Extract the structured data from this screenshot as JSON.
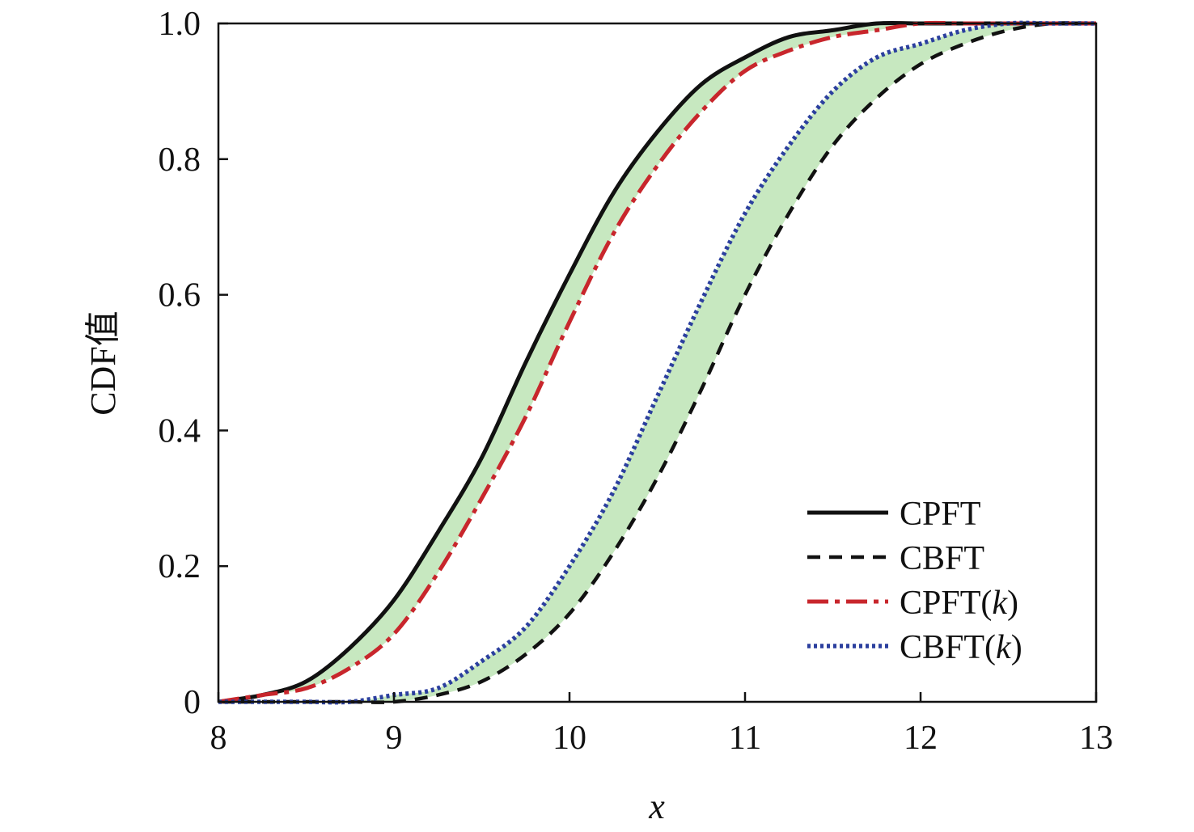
{
  "chart_data": {
    "type": "line",
    "xlabel": "x",
    "ylabel": "CDF值",
    "xlim": [
      8,
      13
    ],
    "ylim": [
      0,
      1
    ],
    "xticks": [
      8,
      9,
      10,
      11,
      12,
      13
    ],
    "xtick_labels": [
      "8",
      "9",
      "10",
      "11",
      "12",
      "13"
    ],
    "yticks": [
      0,
      0.2,
      0.4,
      0.6,
      0.8,
      1.0
    ],
    "ytick_labels": [
      "0",
      "0.2",
      "0.4",
      "0.6",
      "0.8",
      "1.0"
    ],
    "legend_position": "bottom-right",
    "grid": false,
    "x": [
      8.0,
      8.25,
      8.5,
      8.75,
      9.0,
      9.25,
      9.5,
      9.75,
      10.0,
      10.25,
      10.5,
      10.75,
      11.0,
      11.25,
      11.5,
      11.75,
      12.0,
      12.25,
      12.5,
      12.75,
      13.0
    ],
    "series": [
      {
        "name": "CPFT",
        "color": "#111111",
        "style": "solid",
        "values": [
          0.0,
          0.01,
          0.03,
          0.08,
          0.15,
          0.25,
          0.36,
          0.5,
          0.63,
          0.75,
          0.84,
          0.91,
          0.95,
          0.98,
          0.99,
          1.0,
          1.0,
          1.0,
          1.0,
          1.0,
          1.0
        ]
      },
      {
        "name": "CBFT",
        "color": "#111111",
        "style": "dashed",
        "values": [
          0.0,
          0.0,
          0.0,
          0.0,
          0.0,
          0.01,
          0.03,
          0.07,
          0.13,
          0.22,
          0.33,
          0.46,
          0.6,
          0.72,
          0.82,
          0.89,
          0.94,
          0.97,
          0.99,
          1.0,
          1.0
        ]
      },
      {
        "name": "CPFT(k)",
        "label_main": "CPFT(",
        "label_italic": "k",
        "label_end": ")",
        "color": "#c8262c",
        "style": "dashdot",
        "values": [
          0.0,
          0.01,
          0.02,
          0.05,
          0.1,
          0.19,
          0.3,
          0.42,
          0.56,
          0.69,
          0.79,
          0.87,
          0.93,
          0.96,
          0.98,
          0.99,
          1.0,
          1.0,
          1.0,
          1.0,
          1.0
        ]
      },
      {
        "name": "CBFT(k)",
        "label_main": "CBFT(",
        "label_italic": "k",
        "label_end": ")",
        "color": "#2b3f9e",
        "style": "dotted",
        "values": [
          0.0,
          0.0,
          0.0,
          0.0,
          0.01,
          0.02,
          0.06,
          0.11,
          0.2,
          0.31,
          0.45,
          0.59,
          0.72,
          0.82,
          0.9,
          0.95,
          0.97,
          0.99,
          1.0,
          1.0,
          1.0
        ]
      }
    ],
    "bands": [
      {
        "between": [
          "CPFT",
          "CPFT(k)"
        ],
        "color": "#c7e8c0"
      },
      {
        "between": [
          "CBFT(k)",
          "CBFT"
        ],
        "color": "#c7e8c0"
      }
    ]
  }
}
